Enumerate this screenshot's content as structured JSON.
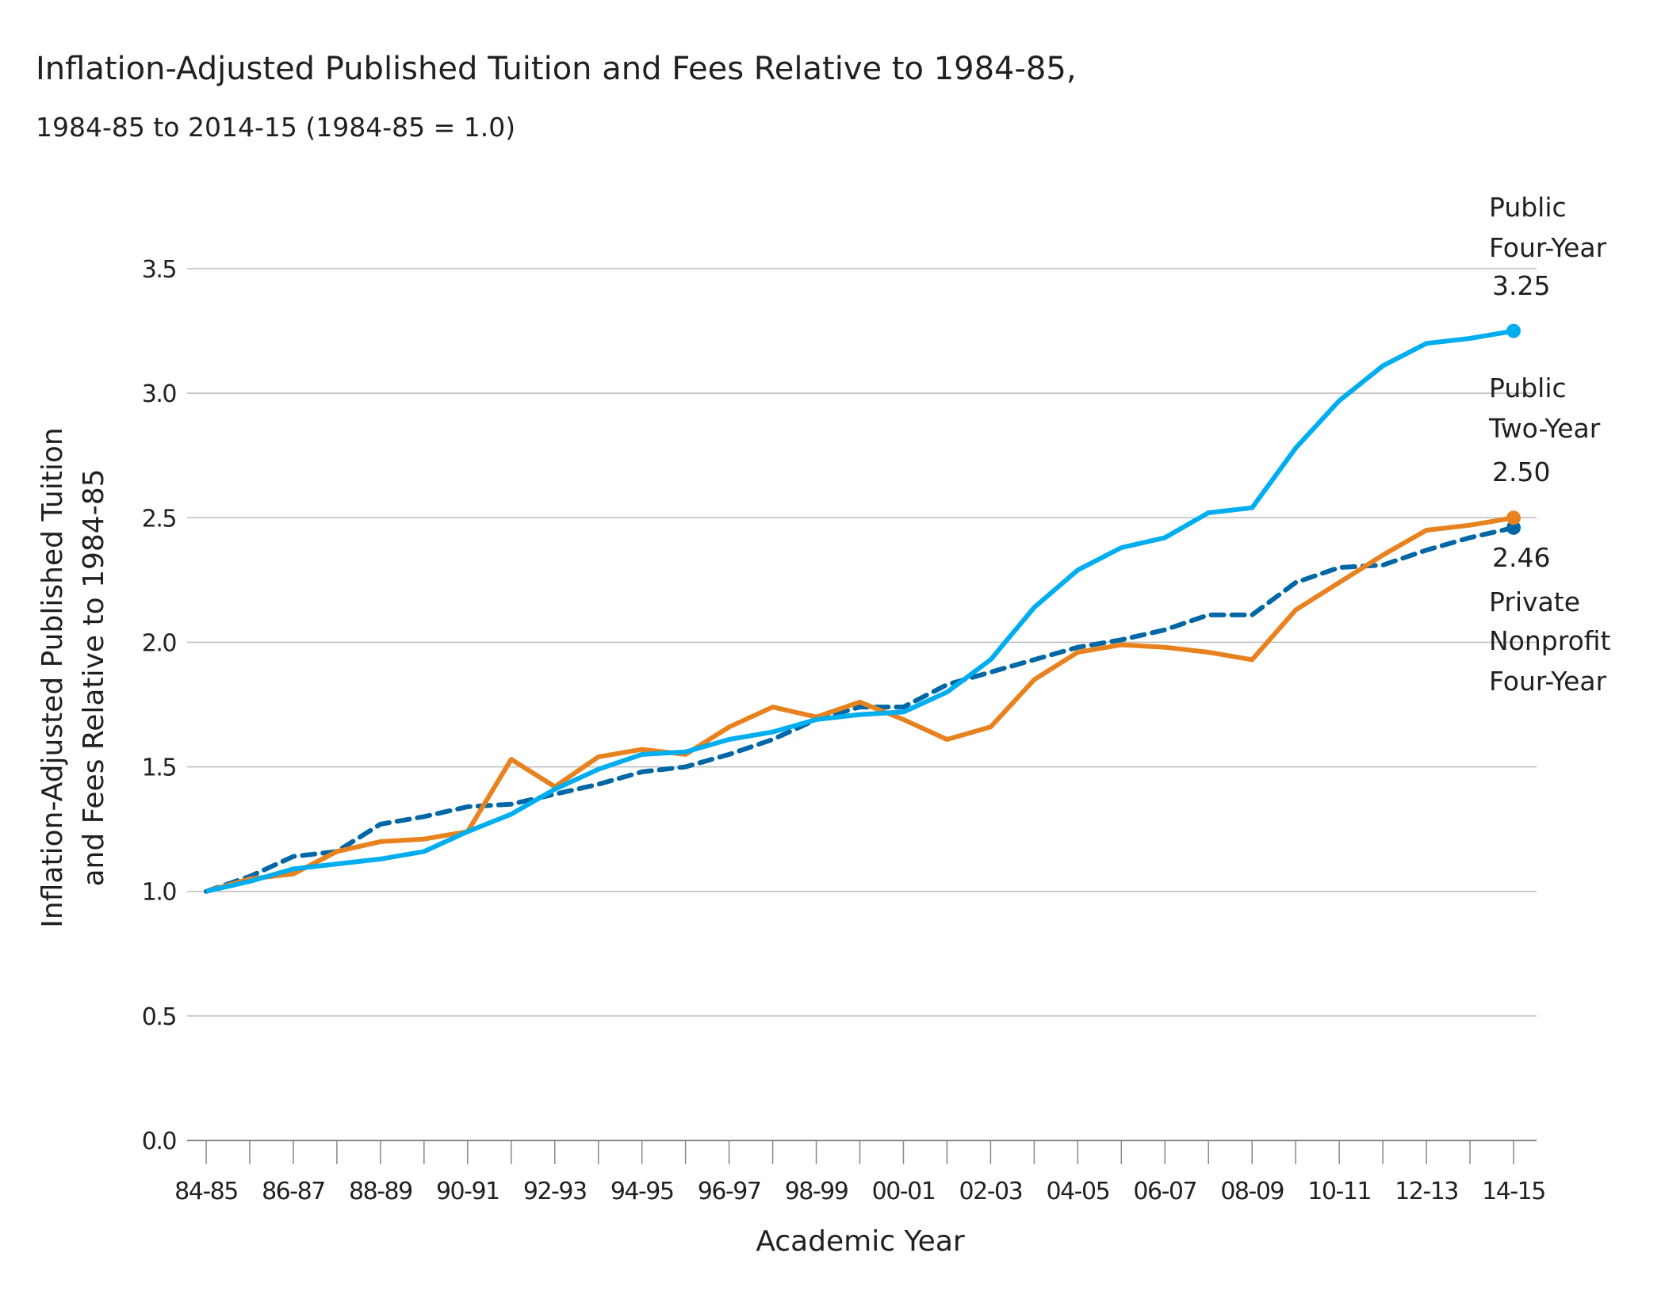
{
  "chart_data": {
    "type": "line",
    "title": "Inflation-Adjusted Published Tuition and Fees Relative to 1984-85,",
    "subtitle": "1984-85 to 2014-15 (1984-85 = 1.0)",
    "xlabel": "Academic Year",
    "ylabel": [
      "Inflation-Adjusted Published Tuition",
      "and Fees Relative to 1984-85"
    ],
    "ylim": [
      0,
      3.5
    ],
    "yticks": [
      "0.0",
      "0.5",
      "1.0",
      "1.5",
      "2.0",
      "2.5",
      "3.0",
      "3.5"
    ],
    "grid": true,
    "legend": "end-of-line labels",
    "x": [
      "84-85",
      "85-86",
      "86-87",
      "87-88",
      "88-89",
      "89-90",
      "90-91",
      "91-92",
      "92-93",
      "93-94",
      "94-95",
      "95-96",
      "96-97",
      "97-98",
      "98-99",
      "99-00",
      "00-01",
      "01-02",
      "02-03",
      "03-04",
      "04-05",
      "05-06",
      "06-07",
      "07-08",
      "08-09",
      "09-10",
      "10-11",
      "11-12",
      "12-13",
      "13-14",
      "14-15"
    ],
    "xtick_labels": [
      "84-85",
      "86-87",
      "88-89",
      "90-91",
      "92-93",
      "94-95",
      "96-97",
      "98-99",
      "00-01",
      "02-03",
      "04-05",
      "06-07",
      "08-09",
      "10-11",
      "12-13",
      "14-15"
    ],
    "series": [
      {
        "name": "Public Four-Year",
        "label_lines": [
          "Public",
          "Four-Year"
        ],
        "end_value_label": "3.25",
        "color": "#00aeef",
        "style": "solid",
        "values": [
          1.0,
          1.04,
          1.09,
          1.11,
          1.13,
          1.16,
          1.24,
          1.31,
          1.41,
          1.49,
          1.55,
          1.56,
          1.61,
          1.64,
          1.69,
          1.71,
          1.72,
          1.8,
          1.93,
          2.14,
          2.29,
          2.38,
          2.42,
          2.52,
          2.54,
          2.78,
          2.97,
          3.11,
          3.2,
          3.22,
          3.25
        ]
      },
      {
        "name": "Public Two-Year",
        "label_lines": [
          "Public",
          "Two-Year"
        ],
        "end_value_label": "2.50",
        "color": "#e8821e",
        "style": "solid",
        "values": [
          1.0,
          1.05,
          1.07,
          1.16,
          1.2,
          1.21,
          1.24,
          1.53,
          1.42,
          1.54,
          1.57,
          1.55,
          1.66,
          1.74,
          1.7,
          1.76,
          1.69,
          1.61,
          1.66,
          1.85,
          1.96,
          1.99,
          1.98,
          1.96,
          1.93,
          2.13,
          2.24,
          2.35,
          2.45,
          2.47,
          2.5
        ]
      },
      {
        "name": "Private Nonprofit Four-Year",
        "label_lines": [
          "Private",
          "Nonprofit",
          "Four-Year"
        ],
        "end_value_label": "2.46",
        "color": "#0067a6",
        "style": "dashed",
        "values": [
          1.0,
          1.06,
          1.14,
          1.16,
          1.27,
          1.3,
          1.34,
          1.35,
          1.39,
          1.43,
          1.48,
          1.5,
          1.55,
          1.61,
          1.69,
          1.74,
          1.74,
          1.83,
          1.88,
          1.93,
          1.98,
          2.01,
          2.05,
          2.11,
          2.11,
          2.24,
          2.3,
          2.31,
          2.37,
          2.42,
          2.46
        ]
      }
    ]
  }
}
